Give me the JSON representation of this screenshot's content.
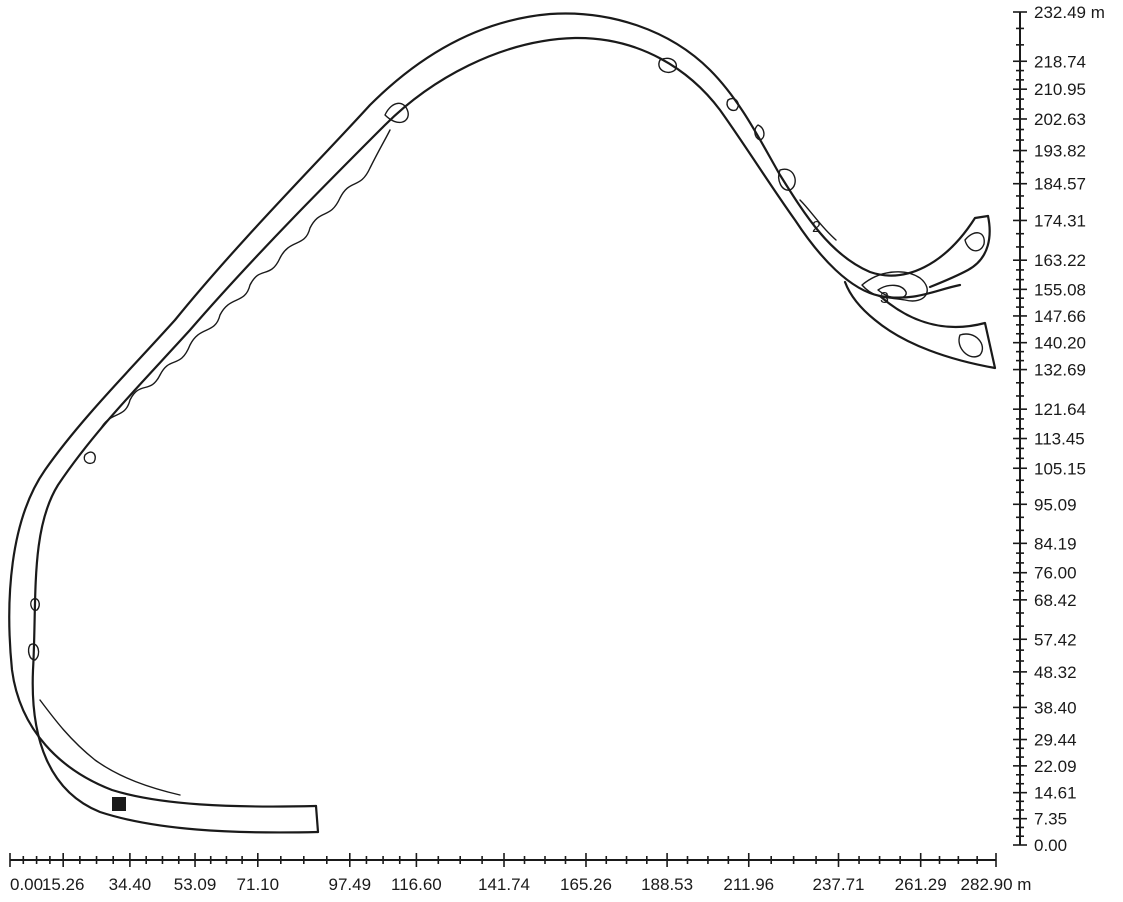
{
  "x_axis": {
    "unit": "m",
    "range": [
      0,
      282.9
    ],
    "tick_labels": [
      "0.00",
      "15.26",
      "34.40",
      "53.09",
      "71.10",
      "97.49",
      "116.60",
      "141.74",
      "165.26",
      "188.53",
      "211.96",
      "237.71",
      "261.29",
      "282.90"
    ]
  },
  "y_axis": {
    "unit": "m",
    "range": [
      0,
      232.49
    ],
    "tick_labels": [
      "0.00",
      "7.35",
      "14.61",
      "22.09",
      "29.44",
      "38.40",
      "48.32",
      "57.42",
      "68.42",
      "76.00",
      "84.19",
      "95.09",
      "105.15",
      "113.45",
      "121.64",
      "132.69",
      "140.20",
      "147.66",
      "155.08",
      "163.22",
      "174.31",
      "184.57",
      "193.82",
      "202.63",
      "210.95",
      "218.74",
      "232.49"
    ]
  },
  "contour_labels": [
    "2",
    "3"
  ],
  "marker": "start-marker-square"
}
